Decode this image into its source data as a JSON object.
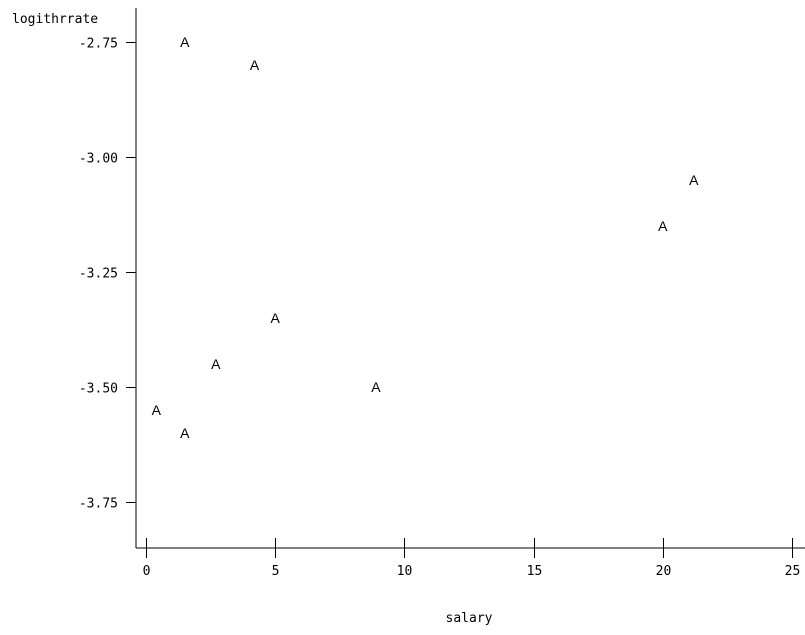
{
  "chart_data": {
    "type": "scatter",
    "title": "",
    "xlabel": "salary",
    "ylabel": "logithrrate",
    "xlim": [
      0,
      25
    ],
    "ylim": [
      -3.75,
      -2.75
    ],
    "x_ticks": [
      0,
      5,
      10,
      15,
      20,
      25
    ],
    "x_tick_labels": [
      "0",
      "5",
      "10",
      "15",
      "20",
      "25"
    ],
    "y_ticks": [
      -2.75,
      -3.0,
      -3.25,
      -3.5,
      -3.75
    ],
    "y_tick_labels": [
      "-2.75",
      "-3.00",
      "-3.25",
      "-3.50",
      "-3.75"
    ],
    "marker": "A",
    "grid": false,
    "points": [
      {
        "x": 1.5,
        "y": -2.75
      },
      {
        "x": 4.2,
        "y": -2.8
      },
      {
        "x": 21.2,
        "y": -3.05
      },
      {
        "x": 20.0,
        "y": -3.15
      },
      {
        "x": 5.0,
        "y": -3.35
      },
      {
        "x": 2.7,
        "y": -3.45
      },
      {
        "x": 8.9,
        "y": -3.5
      },
      {
        "x": 0.4,
        "y": -3.55
      },
      {
        "x": 1.5,
        "y": -3.6
      }
    ]
  }
}
